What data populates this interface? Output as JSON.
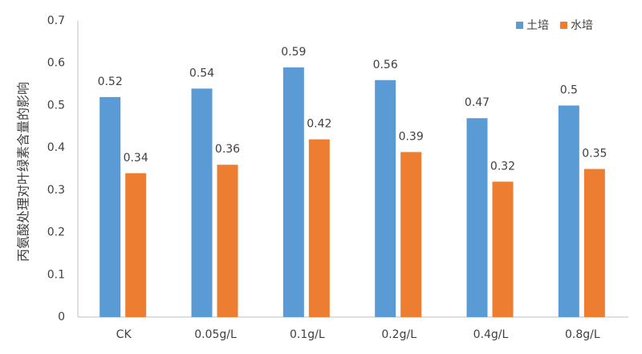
{
  "chart_data": {
    "type": "bar",
    "ylabel": "丙氨酸处理对叶绿素含量的影响",
    "xlabel": "",
    "categories": [
      "CK",
      "0.05g/L",
      "0.1g/L",
      "0.2g/L",
      "0.4g/L",
      "0.8g/L"
    ],
    "series": [
      {
        "name": "土培",
        "color": "#5B9BD5",
        "values": [
          0.52,
          0.54,
          0.59,
          0.56,
          0.47,
          0.5
        ],
        "labels": [
          "0.52",
          "0.54",
          "0.59",
          "0.56",
          "0.47",
          "0.5"
        ]
      },
      {
        "name": "水培",
        "color": "#ED7D31",
        "values": [
          0.34,
          0.36,
          0.42,
          0.39,
          0.32,
          0.35
        ],
        "labels": [
          "0.34",
          "0.36",
          "0.42",
          "0.39",
          "0.32",
          "0.35"
        ]
      }
    ],
    "ylim": [
      0,
      0.7
    ],
    "yticks": [
      "0",
      "0.1",
      "0.2",
      "0.3",
      "0.4",
      "0.5",
      "0.6",
      "0.7"
    ],
    "grid": false,
    "legend_position": "top-right"
  }
}
